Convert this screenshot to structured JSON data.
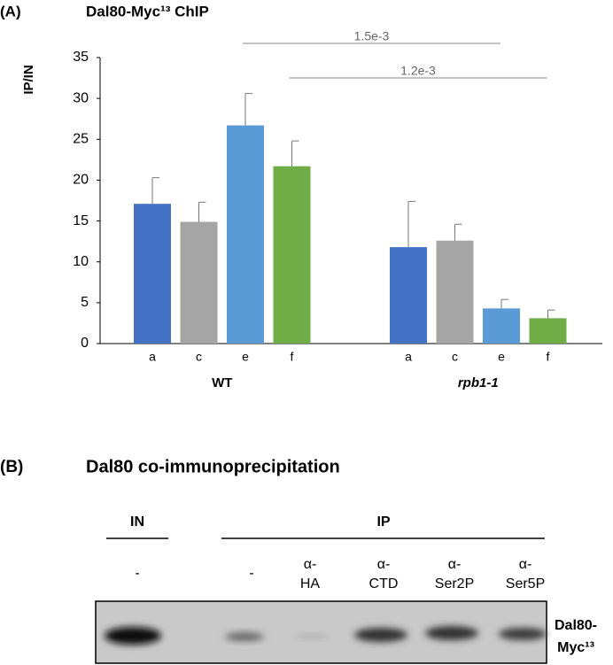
{
  "chart_data": {
    "type": "grouped-bar",
    "panel": "(A)",
    "title": "Dal80-Myc¹³ ChIP",
    "ylabel": "IP/IN",
    "groups": [
      {
        "name": "WT",
        "categories": [
          "a",
          "c",
          "e",
          "f"
        ],
        "values": [
          17.1,
          14.9,
          26.7,
          21.7
        ],
        "errors": [
          3.2,
          2.4,
          3.9,
          3.1
        ]
      },
      {
        "name": "rpb1-1",
        "categories": [
          "a",
          "c",
          "e",
          "f"
        ],
        "values": [
          11.8,
          12.6,
          4.3,
          3.1
        ],
        "errors": [
          5.6,
          2.0,
          1.1,
          1.0
        ]
      }
    ],
    "colors": [
      "#4472c4",
      "#a5a5a5",
      "#5b9bd5",
      "#70ad47"
    ],
    "ylim": [
      0,
      35
    ],
    "yticks": [
      0,
      5,
      10,
      15,
      20,
      25,
      30,
      35
    ],
    "annotations": [
      "1.5e-3",
      "1.2e-3"
    ]
  },
  "blot": {
    "panel": "(B)",
    "title": "Dal80 co-immunoprecipitation",
    "in_label": "IN",
    "ip_label": "IP",
    "lanes": [
      [
        "-"
      ],
      [
        "-"
      ],
      [
        "α-",
        "HA"
      ],
      [
        "α-",
        "CTD"
      ],
      [
        "α-",
        "Ser2P"
      ],
      [
        "α-",
        "Ser5P"
      ]
    ],
    "target": [
      "Dal80-",
      "Myc¹³"
    ]
  }
}
